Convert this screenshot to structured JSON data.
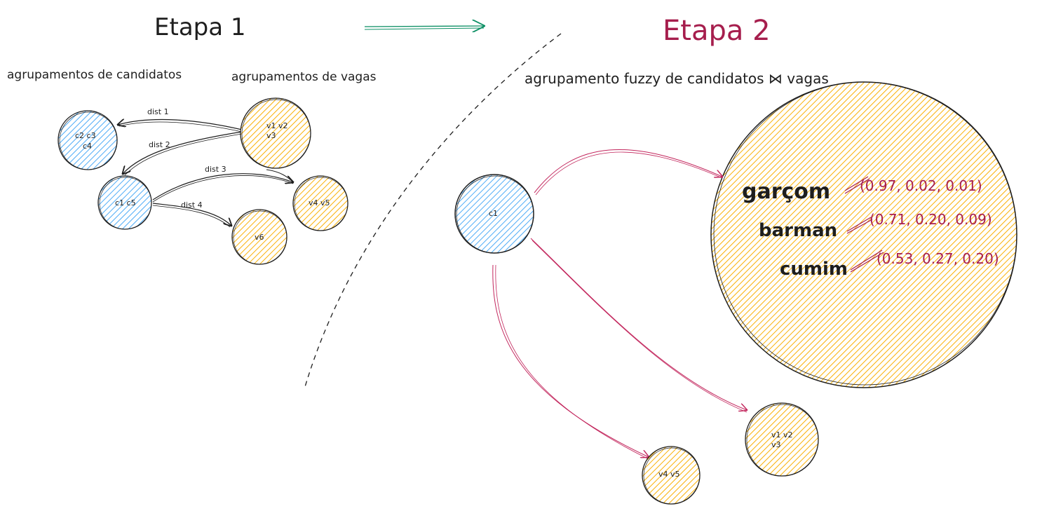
{
  "titles": {
    "stage1": "Etapa 1",
    "stage2": "Etapa 2"
  },
  "stage1": {
    "candidates_heading": "agrupamentos de candidatos",
    "jobs_heading": "agrupamentos de vagas",
    "nodes": {
      "c2c3c4_line1": "c2 c3",
      "c2c3c4_line2": "c4",
      "c1c5": "c1 c5",
      "v1v2v3_line1": "v1 v2",
      "v1v2v3_line2": "v3",
      "v4v5": "v4 v5",
      "v6": "v6"
    },
    "edges": {
      "dist1": "dist 1",
      "dist2": "dist 2",
      "dist3": "dist 3",
      "dist4": "dist 4"
    }
  },
  "stage2": {
    "heading": "agrupamento fuzzy de candidatos ⋈ vagas",
    "c1": "c1",
    "roles": [
      {
        "name": "garçom",
        "scores": "(0.97, 0.02, 0.01)"
      },
      {
        "name": "barman",
        "scores": "(0.71, 0.20, 0.09)"
      },
      {
        "name": "cumim",
        "scores": "(0.53, 0.27, 0.20)"
      }
    ],
    "v1v2v3_line1": "v1 v2",
    "v1v2v3_line2": "v3",
    "v4v5": "v4 v5"
  },
  "colors": {
    "candidate_fill": "#a5d8ff",
    "candidate_stroke": "#1971c2",
    "job_fill": "#ffec99",
    "job_stroke": "#f08c00",
    "accent_green": "#0c8f64",
    "accent_red": "#a61e4d"
  }
}
